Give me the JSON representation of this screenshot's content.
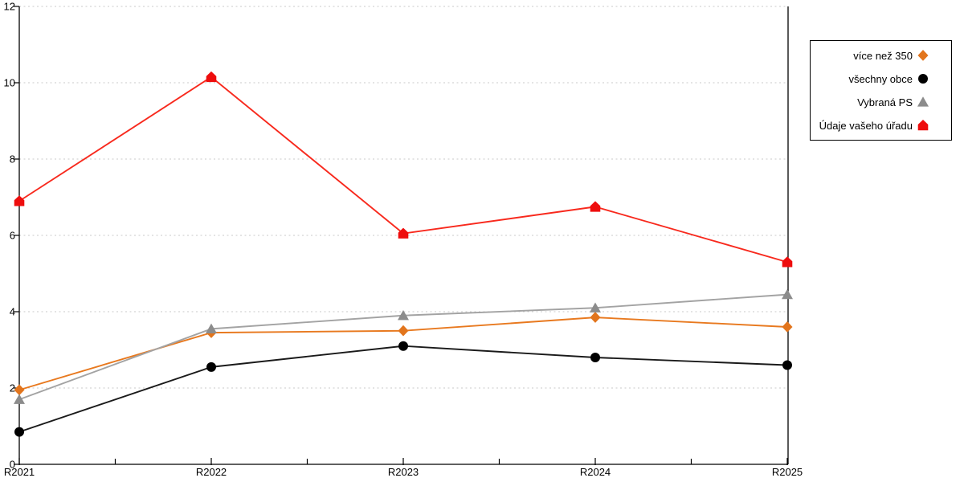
{
  "chart_data": {
    "type": "line",
    "title": "",
    "xlabel": "",
    "ylabel": "",
    "categories": [
      "R2021",
      "R2022",
      "R2023",
      "R2024",
      "R2025"
    ],
    "series": [
      {
        "name": "více než 350",
        "marker": "diamond",
        "marker_color": "#E2751D",
        "line_color": "#E8791F",
        "values": [
          1.95,
          3.45,
          3.5,
          3.85,
          3.6
        ]
      },
      {
        "name": "všechny obce",
        "marker": "circle",
        "marker_color": "#000000",
        "line_color": "#1A1A1A",
        "values": [
          0.85,
          2.55,
          3.1,
          2.8,
          2.6
        ]
      },
      {
        "name": "Vybraná PS",
        "marker": "triangle",
        "marker_color": "#8C8C8C",
        "line_color": "#A3A3A3",
        "values": [
          1.7,
          3.55,
          3.9,
          4.1,
          4.45
        ]
      },
      {
        "name": "Údaje vašeho úřadu",
        "marker": "house",
        "marker_color": "#EE0D0D",
        "line_color": "#F8291D",
        "values": [
          6.9,
          10.15,
          6.05,
          6.75,
          5.3
        ]
      }
    ],
    "ylim": [
      0,
      12
    ],
    "yticks": [
      0,
      2,
      4,
      6,
      8,
      10,
      12
    ],
    "x_minor_ticks_between_categories": true,
    "grid": "horizontal-dashed",
    "legend_position": "outside-top-right"
  },
  "colors": {
    "background": "#FFFFFF",
    "axis": "#000000",
    "gridline": "#C9C9C9",
    "tick_label": "#000000"
  }
}
